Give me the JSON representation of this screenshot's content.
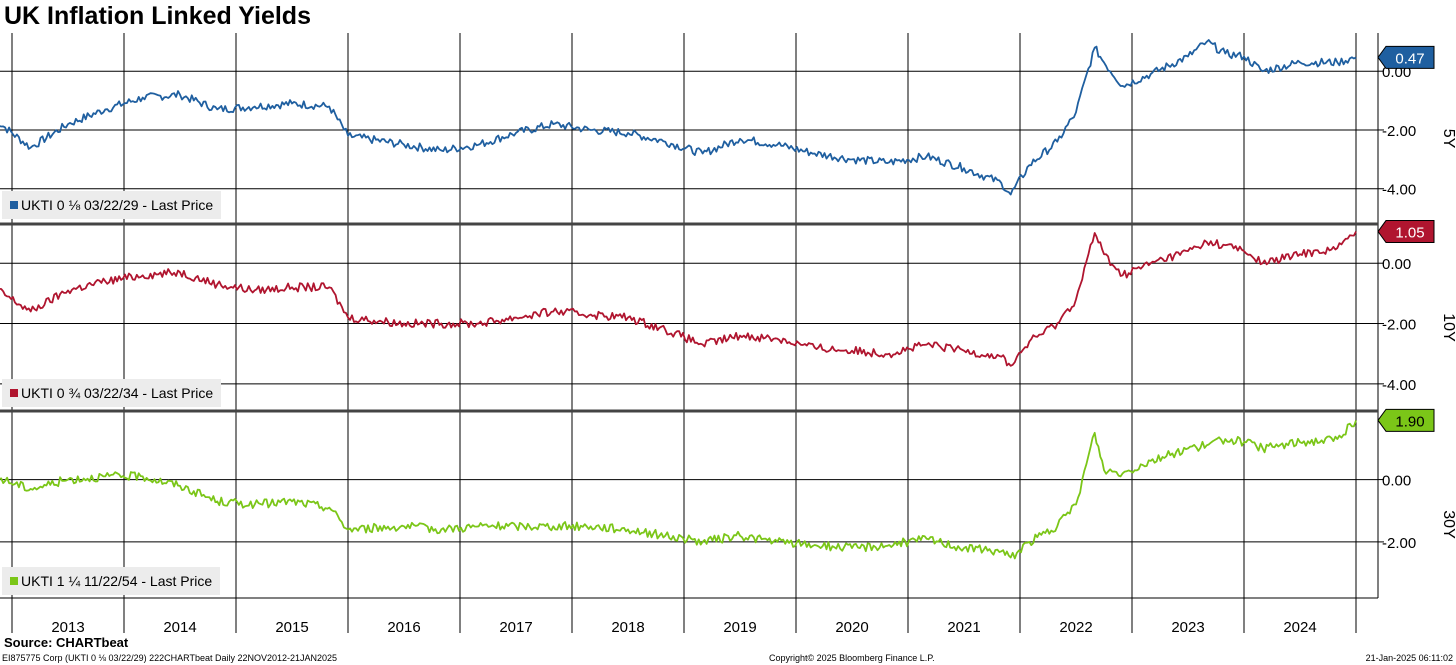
{
  "title": "UK Inflation Linked Yields",
  "source": "Source: CHARTbeat",
  "footer": {
    "left": "EI875775 Corp (UKTI 0 ⅛ 03/22/29) 222CHARTbeat  Daily 22NOV2012-21JAN2025",
    "center": "Copyright© 2025 Bloomberg Finance L.P.",
    "right": "21-Jan-2025 06:11:02"
  },
  "chart_data": [
    {
      "type": "line",
      "panel_label": "5Y",
      "legend": "UKTI 0 ⅛ 03/22/29 - Last Price",
      "color": "#1f5fa0",
      "last_value_label": "0.47",
      "y_ticks": [
        "0.00",
        "-2.00",
        "-4.00"
      ],
      "ylim": [
        -5.2,
        1.3
      ],
      "x_tick_labels": [
        "2013",
        "2014",
        "2015",
        "2016",
        "2017",
        "2018",
        "2019",
        "2020",
        "2021",
        "2022",
        "2023",
        "2024"
      ],
      "x": [
        "2012-11",
        "2013-03",
        "2013-07",
        "2013-11",
        "2014-03",
        "2014-07",
        "2014-11",
        "2015-03",
        "2015-07",
        "2015-11",
        "2016-01",
        "2016-07",
        "2016-11",
        "2017-03",
        "2017-07",
        "2017-11",
        "2018-03",
        "2018-07",
        "2018-11",
        "2019-03",
        "2019-07",
        "2019-11",
        "2020-03",
        "2020-07",
        "2020-11",
        "2021-03",
        "2021-07",
        "2021-11",
        "2021-12",
        "2022-02",
        "2022-05",
        "2022-07",
        "2022-09",
        "2022-10",
        "2022-12",
        "2023-03",
        "2023-07",
        "2023-09",
        "2023-11",
        "2024-01",
        "2024-03",
        "2024-07",
        "2024-11",
        "2025-01"
      ],
      "y": [
        -1.6,
        -2.6,
        -1.8,
        -1.3,
        -0.9,
        -0.8,
        -1.3,
        -1.2,
        -1.1,
        -1.2,
        -2.2,
        -2.5,
        -2.7,
        -2.5,
        -2.1,
        -1.8,
        -2.0,
        -2.1,
        -2.4,
        -2.8,
        -2.3,
        -2.5,
        -2.8,
        -3.0,
        -3.1,
        -2.9,
        -3.3,
        -3.8,
        -4.2,
        -3.2,
        -2.4,
        -1.4,
        0.8,
        0.3,
        -0.5,
        -0.1,
        0.5,
        1.0,
        0.6,
        0.5,
        0.0,
        0.3,
        0.3,
        0.47
      ]
    },
    {
      "type": "line",
      "panel_label": "10Y",
      "legend": "UKTI 0 ¾ 03/22/34 - Last Price",
      "color": "#b0152f",
      "last_value_label": "1.05",
      "y_ticks": [
        "0.00",
        "-2.00",
        "-4.00"
      ],
      "ylim": [
        -4.9,
        1.3
      ],
      "x": [
        "2012-11",
        "2013-03",
        "2013-07",
        "2013-11",
        "2014-03",
        "2014-07",
        "2014-11",
        "2015-03",
        "2015-07",
        "2015-11",
        "2016-01",
        "2016-07",
        "2016-11",
        "2017-03",
        "2017-07",
        "2017-11",
        "2018-03",
        "2018-07",
        "2018-11",
        "2019-03",
        "2019-07",
        "2019-11",
        "2020-03",
        "2020-07",
        "2020-11",
        "2021-03",
        "2021-07",
        "2021-11",
        "2021-12",
        "2022-02",
        "2022-05",
        "2022-07",
        "2022-09",
        "2022-10",
        "2022-12",
        "2023-03",
        "2023-07",
        "2023-09",
        "2023-11",
        "2024-01",
        "2024-03",
        "2024-07",
        "2024-11",
        "2025-01"
      ],
      "y": [
        -0.8,
        -1.6,
        -0.9,
        -0.6,
        -0.4,
        -0.3,
        -0.7,
        -0.9,
        -0.8,
        -0.8,
        -1.8,
        -2.0,
        -2.0,
        -2.0,
        -1.8,
        -1.6,
        -1.7,
        -1.8,
        -2.2,
        -2.7,
        -2.4,
        -2.5,
        -2.8,
        -2.9,
        -3.0,
        -2.7,
        -2.9,
        -3.1,
        -3.4,
        -2.6,
        -2.0,
        -1.2,
        1.0,
        0.3,
        -0.4,
        0.0,
        0.4,
        0.7,
        0.6,
        0.4,
        0.0,
        0.3,
        0.5,
        1.05
      ]
    },
    {
      "type": "line",
      "panel_label": "30Y",
      "legend": "UKTI 1 ¼ 11/22/54 - Last Price",
      "color": "#7bc618",
      "last_value_label": "1.90",
      "y_ticks": [
        "0.00",
        "-2.00"
      ],
      "ylim": [
        -3.8,
        2.2
      ],
      "x": [
        "2012-11",
        "2013-03",
        "2013-07",
        "2013-11",
        "2014-03",
        "2014-07",
        "2014-11",
        "2015-03",
        "2015-07",
        "2015-11",
        "2016-01",
        "2016-07",
        "2016-11",
        "2017-03",
        "2017-07",
        "2017-11",
        "2018-03",
        "2018-07",
        "2018-11",
        "2019-03",
        "2019-07",
        "2019-11",
        "2020-03",
        "2020-07",
        "2020-11",
        "2021-03",
        "2021-07",
        "2021-11",
        "2021-12",
        "2022-02",
        "2022-05",
        "2022-07",
        "2022-09",
        "2022-10",
        "2022-12",
        "2023-03",
        "2023-07",
        "2023-09",
        "2023-11",
        "2024-01",
        "2024-03",
        "2024-07",
        "2024-11",
        "2025-01"
      ],
      "y": [
        0.1,
        -0.3,
        0.0,
        0.1,
        0.1,
        -0.2,
        -0.7,
        -0.8,
        -0.7,
        -0.9,
        -1.6,
        -1.5,
        -1.6,
        -1.5,
        -1.5,
        -1.5,
        -1.5,
        -1.6,
        -1.8,
        -2.0,
        -1.8,
        -2.0,
        -2.1,
        -2.2,
        -2.1,
        -1.9,
        -2.2,
        -2.3,
        -2.5,
        -2.0,
        -1.5,
        -0.8,
        1.5,
        0.3,
        0.2,
        0.6,
        1.0,
        1.1,
        1.3,
        1.2,
        1.0,
        1.2,
        1.3,
        1.9
      ]
    }
  ]
}
